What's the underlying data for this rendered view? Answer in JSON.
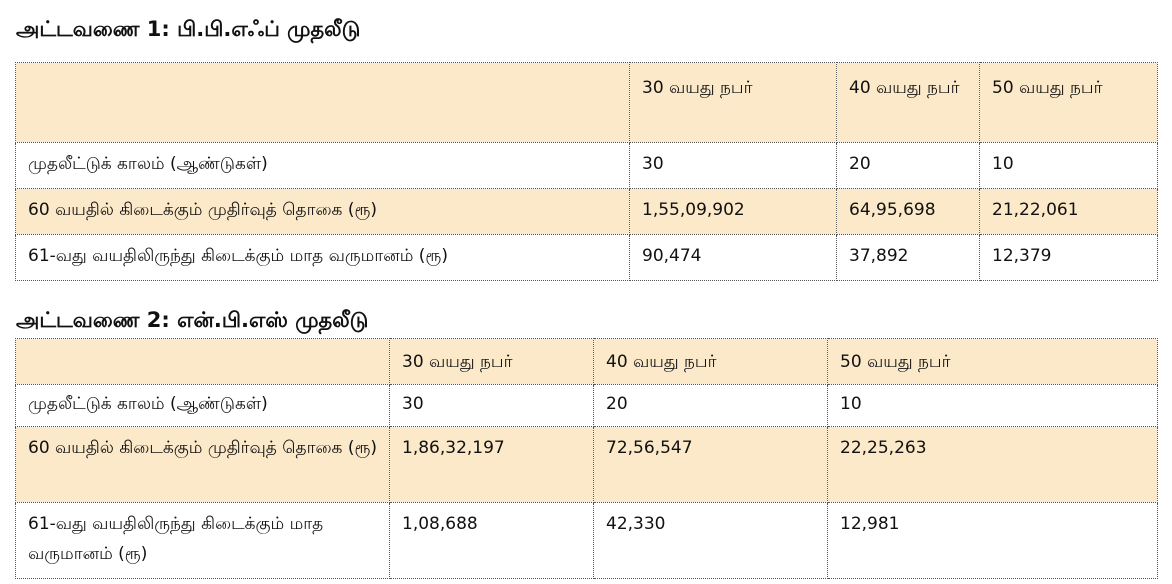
{
  "tables": [
    {
      "title": "அட்டவணை 1: பி.பி.எஃப் முதலீடு",
      "columns": [
        "",
        "30 வயது நபர்",
        "40 வயது நபர்",
        "50 வயது நபர்"
      ],
      "rows": [
        [
          "முதலீட்டுக் காலம் (ஆண்டுகள்)",
          "30",
          "20",
          "10"
        ],
        [
          "60 வயதில் கிடைக்கும் முதிர்வுத் தொகை (ரூ)",
          "1,55,09,902",
          "64,95,698",
          "21,22,061"
        ],
        [
          "61-வது வயதிலிருந்து கிடைக்கும் மாத வருமானம் (ரூ)",
          "90,474",
          "37,892",
          "12,379"
        ]
      ]
    },
    {
      "title": "அட்டவணை 2: என்.பி.எஸ் முதலீடு",
      "columns": [
        "",
        "30 வயது நபர்",
        "40 வயது நபர்",
        "50 வயது நபர்"
      ],
      "rows": [
        [
          "முதலீட்டுக் காலம் (ஆண்டுகள்)",
          "30",
          "20",
          "10"
        ],
        [
          "60 வயதில் கிடைக்கும் முதிர்வுத் தொகை (ரூ)",
          "1,86,32,197",
          "72,56,547",
          "22,25,263"
        ],
        [
          "61-வது வயதிலிருந்து கிடைக்கும் மாத வருமானம் (ரூ)",
          "1,08,688",
          "42,330",
          "12,981"
        ]
      ]
    }
  ],
  "colors": {
    "header_row_fill": "#fbe9c9",
    "shaded_row_fill": "#fbe9c9",
    "grid_line": "#555555"
  }
}
